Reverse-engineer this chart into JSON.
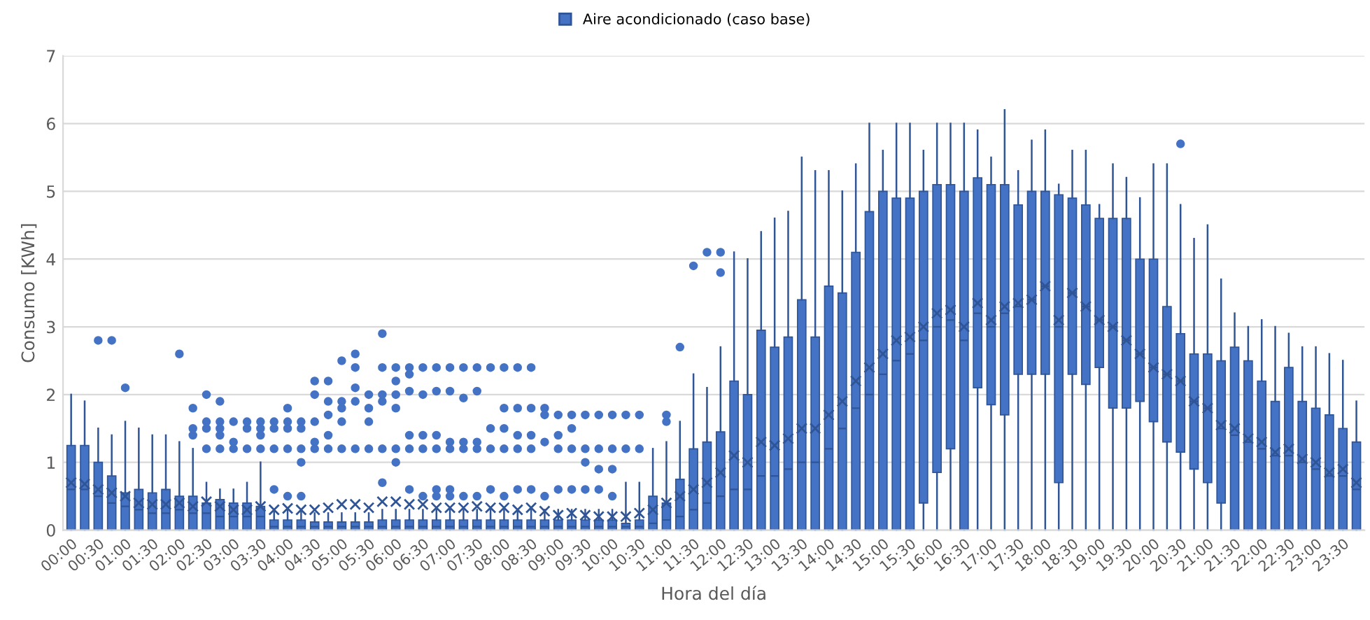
{
  "chart_data": {
    "type": "box",
    "xlabel": "Hora del día",
    "ylabel": "Consumo [KWh]",
    "legend": "top",
    "grid": "y",
    "categories": [
      "00:00",
      null,
      "00:30",
      null,
      "01:00",
      null,
      "01:30",
      null,
      "02:00",
      null,
      "02:30",
      null,
      "03:00",
      null,
      "03:30",
      null,
      "04:00",
      null,
      "04:30",
      null,
      "05:00",
      null,
      "05:30",
      null,
      "06:00",
      null,
      "06:30",
      null,
      "07:00",
      null,
      "07:30",
      null,
      "08:00",
      null,
      "08:30",
      null,
      "09:00",
      null,
      "09:30",
      null,
      "10:00",
      null,
      "10:30",
      null,
      "11:00",
      null,
      "11:30",
      null,
      "12:00",
      null,
      "12:30",
      null,
      "13:00",
      null,
      "13:30",
      null,
      "14:00",
      null,
      "14:30",
      null,
      "15:00",
      null,
      "15:30",
      null,
      "16:00",
      null,
      "16:30",
      null,
      "17:00",
      null,
      "17:30",
      null,
      "18:00",
      null,
      "18:30",
      null,
      "19:00",
      null,
      "19:30",
      null,
      "20:00",
      null,
      "20:30",
      null,
      "21:00",
      null,
      "21:30",
      null,
      "22:00",
      null,
      "22:30",
      null,
      "23:00",
      null,
      "23:30",
      null
    ],
    "ylim": [
      0,
      7
    ],
    "yticks": [
      0,
      1,
      2,
      3,
      4,
      5,
      6,
      7
    ],
    "series": [
      {
        "name": "Aire acondicionado (caso base)",
        "color": "#4472c4",
        "boxes": [
          {
            "low": 0,
            "q1": 0,
            "median": 0.6,
            "q3": 1.25,
            "high": 2.0,
            "mean": 0.7
          },
          {
            "low": 0,
            "q1": 0,
            "median": 0.6,
            "q3": 1.25,
            "high": 1.9,
            "mean": 0.68
          },
          {
            "low": 0,
            "q1": 0,
            "median": 0.5,
            "q3": 1.0,
            "high": 1.5,
            "mean": 0.6,
            "outliers": [
              2.8
            ]
          },
          {
            "low": 0,
            "q1": 0,
            "median": 0.4,
            "q3": 0.8,
            "high": 1.4,
            "mean": 0.55,
            "outliers": [
              2.8
            ]
          },
          {
            "low": 0,
            "q1": 0,
            "median": 0.35,
            "q3": 0.55,
            "high": 1.6,
            "mean": 0.5,
            "outliers": [
              2.1
            ]
          },
          {
            "low": 0,
            "q1": 0,
            "median": 0.3,
            "q3": 0.6,
            "high": 1.5,
            "mean": 0.4
          },
          {
            "low": 0,
            "q1": 0,
            "median": 0.25,
            "q3": 0.55,
            "high": 1.4,
            "mean": 0.38
          },
          {
            "low": 0,
            "q1": 0,
            "median": 0.25,
            "q3": 0.6,
            "high": 1.4,
            "mean": 0.38
          },
          {
            "low": 0,
            "q1": 0,
            "median": 0.3,
            "q3": 0.5,
            "high": 1.3,
            "mean": 0.4,
            "outliers": [
              2.6
            ]
          },
          {
            "low": 0,
            "q1": 0,
            "median": 0.25,
            "q3": 0.5,
            "high": 1.2,
            "mean": 0.35,
            "outliers": [
              1.4,
              1.5,
              1.8
            ]
          },
          {
            "low": 0,
            "q1": 0,
            "median": 0.25,
            "q3": 0.4,
            "high": 0.7,
            "mean": 0.42,
            "outliers": [
              1.2,
              1.5,
              1.6,
              2.0
            ]
          },
          {
            "low": 0,
            "q1": 0,
            "median": 0.2,
            "q3": 0.45,
            "high": 0.6,
            "mean": 0.35,
            "outliers": [
              1.2,
              1.4,
              1.5,
              1.6,
              1.9
            ]
          },
          {
            "low": 0,
            "q1": 0,
            "median": 0.2,
            "q3": 0.4,
            "high": 0.6,
            "mean": 0.3,
            "outliers": [
              1.2,
              1.3,
              1.6
            ]
          },
          {
            "low": 0,
            "q1": 0,
            "median": 0.2,
            "q3": 0.4,
            "high": 0.7,
            "mean": 0.3,
            "outliers": [
              1.2,
              1.5,
              1.6
            ]
          },
          {
            "low": 0,
            "q1": 0,
            "median": 0.2,
            "q3": 0.35,
            "high": 1.0,
            "mean": 0.35,
            "outliers": [
              1.2,
              1.4,
              1.5,
              1.6
            ]
          },
          {
            "low": 0,
            "q1": 0,
            "median": 0.05,
            "q3": 0.15,
            "high": 0.3,
            "mean": 0.3,
            "outliers": [
              0.6,
              1.2,
              1.5,
              1.6
            ]
          },
          {
            "low": 0,
            "q1": 0,
            "median": 0.05,
            "q3": 0.15,
            "high": 0.3,
            "mean": 0.32,
            "outliers": [
              0.5,
              1.2,
              1.5,
              1.6,
              1.8
            ]
          },
          {
            "low": 0,
            "q1": 0,
            "median": 0.05,
            "q3": 0.15,
            "high": 0.3,
            "mean": 0.3,
            "outliers": [
              0.5,
              1.0,
              1.2,
              1.5,
              1.6
            ]
          },
          {
            "low": 0,
            "q1": 0,
            "median": 0.05,
            "q3": 0.12,
            "high": 0.25,
            "mean": 0.3,
            "outliers": [
              1.2,
              1.3,
              1.6,
              2.0,
              2.2
            ]
          },
          {
            "low": 0,
            "q1": 0,
            "median": 0.05,
            "q3": 0.12,
            "high": 0.25,
            "mean": 0.33,
            "outliers": [
              1.2,
              1.4,
              1.7,
              1.9,
              2.2
            ]
          },
          {
            "low": 0,
            "q1": 0,
            "median": 0.05,
            "q3": 0.12,
            "high": 0.25,
            "mean": 0.38,
            "outliers": [
              1.2,
              1.6,
              1.8,
              1.9,
              2.5
            ]
          },
          {
            "low": 0,
            "q1": 0,
            "median": 0.05,
            "q3": 0.12,
            "high": 0.25,
            "mean": 0.38,
            "outliers": [
              1.2,
              1.9,
              2.1,
              2.4,
              2.6
            ]
          },
          {
            "low": 0,
            "q1": 0,
            "median": 0.05,
            "q3": 0.12,
            "high": 0.25,
            "mean": 0.33,
            "outliers": [
              1.2,
              1.6,
              1.8,
              2.0
            ]
          },
          {
            "low": 0,
            "q1": 0,
            "median": 0.05,
            "q3": 0.15,
            "high": 0.3,
            "mean": 0.42,
            "outliers": [
              0.7,
              1.2,
              1.9,
              2.0,
              2.4,
              2.9
            ]
          },
          {
            "low": 0,
            "q1": 0,
            "median": 0.05,
            "q3": 0.15,
            "high": 0.3,
            "mean": 0.42,
            "outliers": [
              1.0,
              1.2,
              1.8,
              2.0,
              2.2,
              2.4
            ]
          },
          {
            "low": 0,
            "q1": 0,
            "median": 0.05,
            "q3": 0.15,
            "high": 0.3,
            "mean": 0.38,
            "outliers": [
              0.6,
              1.2,
              1.4,
              2.05,
              2.3,
              2.4
            ]
          },
          {
            "low": 0,
            "q1": 0,
            "median": 0.05,
            "q3": 0.15,
            "high": 0.3,
            "mean": 0.38,
            "outliers": [
              0.5,
              1.2,
              1.4,
              2.0,
              2.4
            ]
          },
          {
            "low": 0,
            "q1": 0,
            "median": 0.05,
            "q3": 0.15,
            "high": 0.3,
            "mean": 0.33,
            "outliers": [
              0.5,
              0.6,
              1.2,
              1.4,
              2.05,
              2.4
            ]
          },
          {
            "low": 0,
            "q1": 0,
            "median": 0.05,
            "q3": 0.15,
            "high": 0.3,
            "mean": 0.33,
            "outliers": [
              0.5,
              0.6,
              1.2,
              1.3,
              2.05,
              2.4
            ]
          },
          {
            "low": 0,
            "q1": 0,
            "median": 0.05,
            "q3": 0.15,
            "high": 0.3,
            "mean": 0.33,
            "outliers": [
              0.5,
              1.2,
              1.3,
              1.95,
              2.4
            ]
          },
          {
            "low": 0,
            "q1": 0,
            "median": 0.05,
            "q3": 0.15,
            "high": 0.3,
            "mean": 0.35,
            "outliers": [
              0.5,
              1.2,
              1.3,
              2.05,
              2.4
            ]
          },
          {
            "low": 0,
            "q1": 0,
            "median": 0.05,
            "q3": 0.15,
            "high": 0.3,
            "mean": 0.33,
            "outliers": [
              0.6,
              1.2,
              1.5,
              2.4
            ]
          },
          {
            "low": 0,
            "q1": 0,
            "median": 0.05,
            "q3": 0.15,
            "high": 0.3,
            "mean": 0.33,
            "outliers": [
              0.5,
              1.2,
              1.5,
              1.8,
              2.4
            ]
          },
          {
            "low": 0,
            "q1": 0,
            "median": 0.05,
            "q3": 0.15,
            "high": 0.3,
            "mean": 0.3,
            "outliers": [
              0.6,
              1.2,
              1.4,
              1.8,
              2.4
            ]
          },
          {
            "low": 0,
            "q1": 0,
            "median": 0.05,
            "q3": 0.15,
            "high": 0.3,
            "mean": 0.33,
            "outliers": [
              0.6,
              1.2,
              1.4,
              1.8,
              2.4
            ]
          },
          {
            "low": 0,
            "q1": 0,
            "median": 0.05,
            "q3": 0.15,
            "high": 0.3,
            "mean": 0.28,
            "outliers": [
              0.5,
              1.3,
              1.7,
              1.8
            ]
          },
          {
            "low": 0,
            "q1": 0,
            "median": 0.05,
            "q3": 0.15,
            "high": 0.3,
            "mean": 0.22,
            "outliers": [
              0.6,
              1.2,
              1.4,
              1.7
            ]
          },
          {
            "low": 0,
            "q1": 0,
            "median": 0.05,
            "q3": 0.15,
            "high": 0.3,
            "mean": 0.25,
            "outliers": [
              0.6,
              1.2,
              1.5,
              1.7
            ]
          },
          {
            "low": 0,
            "q1": 0,
            "median": 0.05,
            "q3": 0.15,
            "high": 0.3,
            "mean": 0.22,
            "outliers": [
              0.6,
              1.0,
              1.2,
              1.7
            ]
          },
          {
            "low": 0,
            "q1": 0,
            "median": 0.05,
            "q3": 0.15,
            "high": 0.3,
            "mean": 0.2,
            "outliers": [
              0.6,
              0.9,
              1.2,
              1.7
            ]
          },
          {
            "low": 0,
            "q1": 0,
            "median": 0.05,
            "q3": 0.15,
            "high": 0.3,
            "mean": 0.2,
            "outliers": [
              0.5,
              0.9,
              1.2,
              1.7
            ]
          },
          {
            "low": 0,
            "q1": 0,
            "median": 0.05,
            "q3": 0.1,
            "high": 0.7,
            "mean": 0.2,
            "outliers": [
              1.2,
              1.7
            ]
          },
          {
            "low": 0,
            "q1": 0,
            "median": 0.05,
            "q3": 0.15,
            "high": 0.7,
            "mean": 0.25,
            "outliers": [
              1.2,
              1.7
            ]
          },
          {
            "low": 0,
            "q1": 0,
            "median": 0.1,
            "q3": 0.5,
            "high": 1.2,
            "mean": 0.3
          },
          {
            "low": 0,
            "q1": 0,
            "median": 0.15,
            "q3": 0.4,
            "high": 1.3,
            "mean": 0.4,
            "outliers": [
              1.6,
              1.7
            ]
          },
          {
            "low": 0,
            "q1": 0,
            "median": 0.2,
            "q3": 0.75,
            "high": 1.6,
            "mean": 0.5,
            "outliers": [
              2.7
            ]
          },
          {
            "low": 0,
            "q1": 0,
            "median": 0.3,
            "q3": 1.2,
            "high": 2.3,
            "mean": 0.6,
            "outliers": [
              3.9
            ]
          },
          {
            "low": 0,
            "q1": 0,
            "median": 0.4,
            "q3": 1.3,
            "high": 2.1,
            "mean": 0.7,
            "outliers": [
              4.1
            ]
          },
          {
            "low": 0,
            "q1": 0,
            "median": 0.5,
            "q3": 1.45,
            "high": 2.7,
            "mean": 0.85,
            "outliers": [
              3.8,
              4.1
            ]
          },
          {
            "low": 0,
            "q1": 0,
            "median": 0.6,
            "q3": 2.2,
            "high": 4.1,
            "mean": 1.1
          },
          {
            "low": 0,
            "q1": 0,
            "median": 0.6,
            "q3": 2.0,
            "high": 4.0,
            "mean": 1.0
          },
          {
            "low": 0,
            "q1": 0,
            "median": 0.8,
            "q3": 2.95,
            "high": 4.4,
            "mean": 1.3
          },
          {
            "low": 0,
            "q1": 0,
            "median": 0.8,
            "q3": 2.7,
            "high": 4.6,
            "mean": 1.25
          },
          {
            "low": 0,
            "q1": 0,
            "median": 0.9,
            "q3": 2.85,
            "high": 4.7,
            "mean": 1.35
          },
          {
            "low": 0,
            "q1": 0,
            "median": 1.0,
            "q3": 3.4,
            "high": 5.5,
            "mean": 1.5
          },
          {
            "low": 0,
            "q1": 0,
            "median": 1.0,
            "q3": 2.85,
            "high": 5.3,
            "mean": 1.5
          },
          {
            "low": 0,
            "q1": 0,
            "median": 1.2,
            "q3": 3.6,
            "high": 5.3,
            "mean": 1.7
          },
          {
            "low": 0,
            "q1": 0,
            "median": 1.5,
            "q3": 3.5,
            "high": 5.0,
            "mean": 1.9
          },
          {
            "low": 0,
            "q1": 0,
            "median": 1.8,
            "q3": 4.1,
            "high": 5.4,
            "mean": 2.2
          },
          {
            "low": 0,
            "q1": 0,
            "median": 2.0,
            "q3": 4.7,
            "high": 6.0,
            "mean": 2.4
          },
          {
            "low": 0,
            "q1": 0,
            "median": 2.3,
            "q3": 5.0,
            "high": 5.6,
            "mean": 2.6
          },
          {
            "low": 0,
            "q1": 0,
            "median": 2.5,
            "q3": 4.9,
            "high": 6.0,
            "mean": 2.8
          },
          {
            "low": 0,
            "q1": 0,
            "median": 2.6,
            "q3": 4.9,
            "high": 6.0,
            "mean": 2.85
          },
          {
            "low": 0,
            "q1": 0.4,
            "median": 2.8,
            "q3": 5.0,
            "high": 5.6,
            "mean": 3.0
          },
          {
            "low": 0,
            "q1": 0.85,
            "median": 3.0,
            "q3": 5.1,
            "high": 6.0,
            "mean": 3.2
          },
          {
            "low": 0,
            "q1": 1.2,
            "median": 3.1,
            "q3": 5.1,
            "high": 6.0,
            "mean": 3.25
          },
          {
            "low": 0,
            "q1": 0,
            "median": 2.8,
            "q3": 5.0,
            "high": 6.0,
            "mean": 3.0
          },
          {
            "low": 0,
            "q1": 2.1,
            "median": 3.2,
            "q3": 5.2,
            "high": 5.9,
            "mean": 3.35
          },
          {
            "low": 0,
            "q1": 1.85,
            "median": 3.0,
            "q3": 5.1,
            "high": 5.5,
            "mean": 3.1
          },
          {
            "low": 0,
            "q1": 1.7,
            "median": 3.2,
            "q3": 5.1,
            "high": 6.2,
            "mean": 3.3
          },
          {
            "low": 0,
            "q1": 2.3,
            "median": 3.3,
            "q3": 4.8,
            "high": 5.3,
            "mean": 3.35
          },
          {
            "low": 0,
            "q1": 2.3,
            "median": 3.4,
            "q3": 5.0,
            "high": 5.75,
            "mean": 3.4
          },
          {
            "low": 0,
            "q1": 2.3,
            "median": 3.6,
            "q3": 5.0,
            "high": 5.9,
            "mean": 3.6
          },
          {
            "low": 0,
            "q1": 0.7,
            "median": 3.0,
            "q3": 4.95,
            "high": 5.1,
            "mean": 3.1
          },
          {
            "low": 0,
            "q1": 2.3,
            "median": 3.5,
            "q3": 4.9,
            "high": 5.6,
            "mean": 3.5
          },
          {
            "low": 0,
            "q1": 2.15,
            "median": 3.3,
            "q3": 4.8,
            "high": 5.6,
            "mean": 3.3
          },
          {
            "low": 0,
            "q1": 2.4,
            "median": 3.1,
            "q3": 4.6,
            "high": 4.8,
            "mean": 3.1
          },
          {
            "low": 0,
            "q1": 1.8,
            "median": 3.0,
            "q3": 4.6,
            "high": 5.4,
            "mean": 3.0
          },
          {
            "low": 0,
            "q1": 1.8,
            "median": 2.8,
            "q3": 4.6,
            "high": 5.2,
            "mean": 2.8
          },
          {
            "low": 0,
            "q1": 1.9,
            "median": 2.6,
            "q3": 4.0,
            "high": 4.9,
            "mean": 2.6
          },
          {
            "low": 0,
            "q1": 1.6,
            "median": 2.4,
            "q3": 4.0,
            "high": 5.4,
            "mean": 2.4
          },
          {
            "low": 0,
            "q1": 1.3,
            "median": 2.3,
            "q3": 3.3,
            "high": 5.4,
            "mean": 2.3
          },
          {
            "low": 0,
            "q1": 1.15,
            "median": 2.2,
            "q3": 2.9,
            "high": 4.8,
            "mean": 2.2,
            "outliers": [
              5.7
            ]
          },
          {
            "low": 0,
            "q1": 0.9,
            "median": 1.9,
            "q3": 2.6,
            "high": 4.3,
            "mean": 1.9
          },
          {
            "low": 0,
            "q1": 0.7,
            "median": 1.8,
            "q3": 2.6,
            "high": 4.5,
            "mean": 1.8
          },
          {
            "low": 0,
            "q1": 0.4,
            "median": 1.5,
            "q3": 2.5,
            "high": 3.7,
            "mean": 1.55
          },
          {
            "low": 0,
            "q1": 0,
            "median": 1.4,
            "q3": 2.7,
            "high": 3.2,
            "mean": 1.5
          },
          {
            "low": 0,
            "q1": 0,
            "median": 1.3,
            "q3": 2.5,
            "high": 3.0,
            "mean": 1.35
          },
          {
            "low": 0,
            "q1": 0,
            "median": 1.2,
            "q3": 2.2,
            "high": 3.1,
            "mean": 1.3
          },
          {
            "low": 0,
            "q1": 0,
            "median": 1.1,
            "q3": 1.9,
            "high": 3.0,
            "mean": 1.15
          },
          {
            "low": 0,
            "q1": 0,
            "median": 1.1,
            "q3": 2.4,
            "high": 2.9,
            "mean": 1.2
          },
          {
            "low": 0,
            "q1": 0,
            "median": 1.0,
            "q3": 1.9,
            "high": 2.7,
            "mean": 1.05
          },
          {
            "low": 0,
            "q1": 0,
            "median": 0.9,
            "q3": 1.8,
            "high": 2.7,
            "mean": 1.0
          },
          {
            "low": 0,
            "q1": 0,
            "median": 0.8,
            "q3": 1.7,
            "high": 2.6,
            "mean": 0.85
          },
          {
            "low": 0,
            "q1": 0,
            "median": 0.8,
            "q3": 1.5,
            "high": 2.5,
            "mean": 0.9
          },
          {
            "low": 0,
            "q1": 0,
            "median": 0.6,
            "q3": 1.3,
            "high": 1.9,
            "mean": 0.7
          }
        ]
      }
    ]
  }
}
